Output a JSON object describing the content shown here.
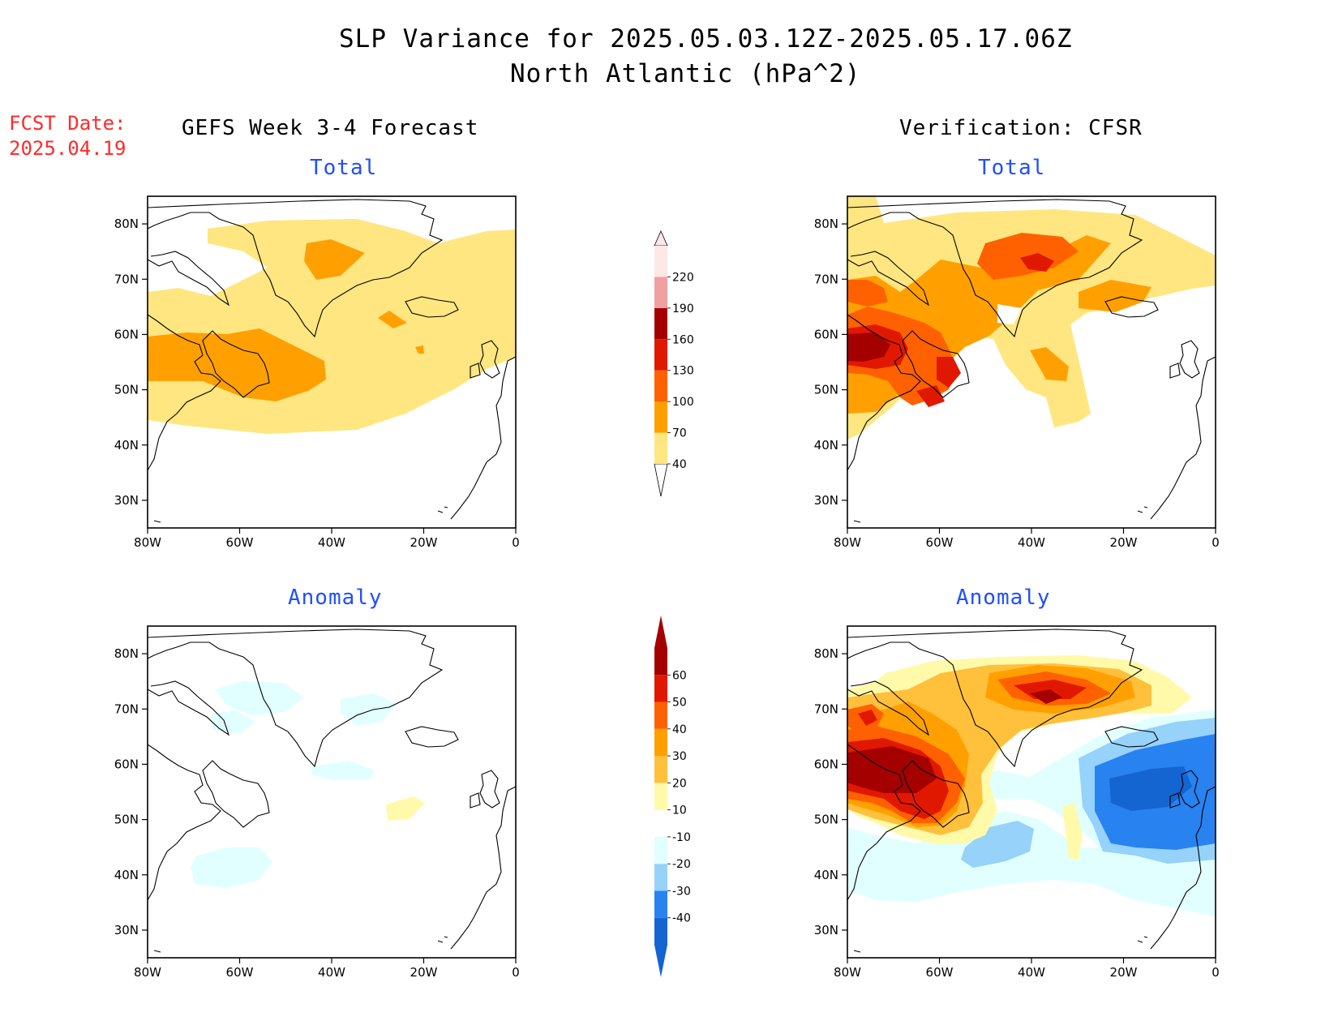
{
  "title_line1": "SLP Variance for 2025.05.03.12Z-2025.05.17.06Z",
  "title_line2": "North Atlantic (hPa^2)",
  "fcst_label": "FCST Date:",
  "fcst_date": "2025.04.19",
  "left_column_title": "GEFS Week 3-4 Forecast",
  "right_column_title": "Verification: CFSR",
  "panel_total_label": "Total",
  "panel_anomaly_label": "Anomaly",
  "map": {
    "lon_ticks": [
      "80W",
      "60W",
      "40W",
      "20W",
      "0"
    ],
    "lat_ticks": [
      "80N",
      "70N",
      "60N",
      "50N",
      "40N",
      "30N"
    ],
    "lon_range": [
      -80,
      0
    ],
    "lat_range": [
      25,
      85
    ],
    "coastline_color": "#000000"
  },
  "colorbar_total": {
    "labels": [
      "40",
      "70",
      "100",
      "130",
      "160",
      "190",
      "220"
    ],
    "colors": [
      "#ffe680",
      "#ffa000",
      "#ff6100",
      "#e11800",
      "#a50000",
      "#f0a0a0",
      "#fde8e8"
    ]
  },
  "colorbar_anomaly": {
    "labels": [
      "-40",
      "-30",
      "-20",
      "-10",
      "10",
      "20",
      "30",
      "40",
      "50",
      "60"
    ],
    "colors": [
      "#1464d2",
      "#2882f0",
      "#96d2fa",
      "#e1ffff",
      "#ffffff",
      "#fffaaa",
      "#ffc03c",
      "#ffa000",
      "#ff6100",
      "#e11800",
      "#a50000"
    ]
  }
}
